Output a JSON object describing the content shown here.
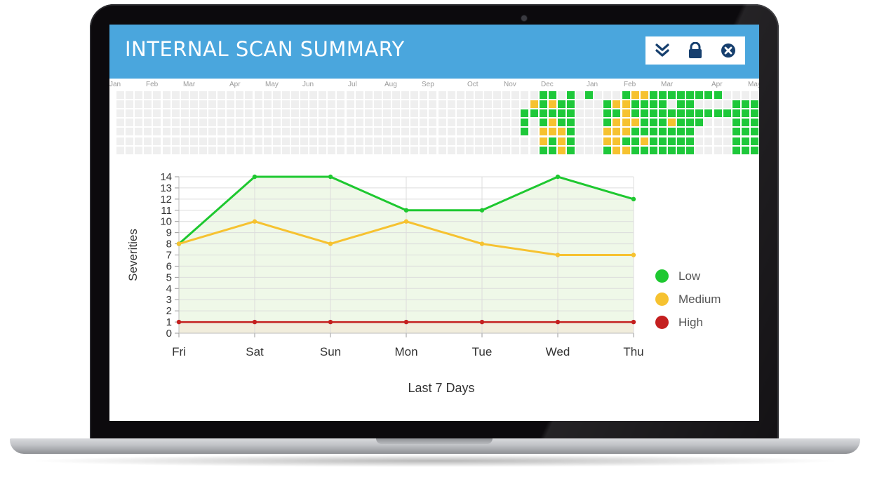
{
  "header": {
    "title": "INTERNAL SCAN SUMMARY",
    "actions": [
      {
        "name": "collapse-icon",
        "icon": "double-chevron-down"
      },
      {
        "name": "lock-icon",
        "icon": "lock"
      },
      {
        "name": "close-icon",
        "icon": "close-circle"
      }
    ],
    "accent_color": "#4aa6dd",
    "icon_color": "#163f6e"
  },
  "heatmap": {
    "months": [
      "Jan",
      "Feb",
      "Mar",
      "Apr",
      "May",
      "Jun",
      "Jul",
      "Aug",
      "Sep",
      "Oct",
      "Nov",
      "Dec",
      "Jan",
      "Feb",
      "Mar",
      "Apr",
      "May"
    ],
    "colors": {
      "empty": "#efefef",
      "low": "#1ec83a",
      "medium": "#f6c230"
    }
  },
  "chart_data": {
    "type": "line",
    "categories": [
      "Fri",
      "Sat",
      "Sun",
      "Mon",
      "Tue",
      "Wed",
      "Thu"
    ],
    "series": [
      {
        "name": "Low",
        "values": [
          8,
          14,
          14,
          11,
          11,
          14,
          12
        ],
        "color": "#1ec830"
      },
      {
        "name": "Medium",
        "values": [
          8,
          10,
          8,
          10,
          8,
          7,
          7
        ],
        "color": "#f6c230"
      },
      {
        "name": "High",
        "values": [
          1,
          1,
          1,
          1,
          1,
          1,
          1
        ],
        "color": "#c41f1f"
      }
    ],
    "ylabel": "Severities",
    "xlabel": "Last 7 Days",
    "ylim": [
      0,
      14
    ],
    "yticks": [
      0,
      1,
      2,
      3,
      4,
      5,
      6,
      7,
      8,
      9,
      10,
      11,
      12,
      13,
      14
    ],
    "grid": true,
    "legend_position": "right"
  }
}
